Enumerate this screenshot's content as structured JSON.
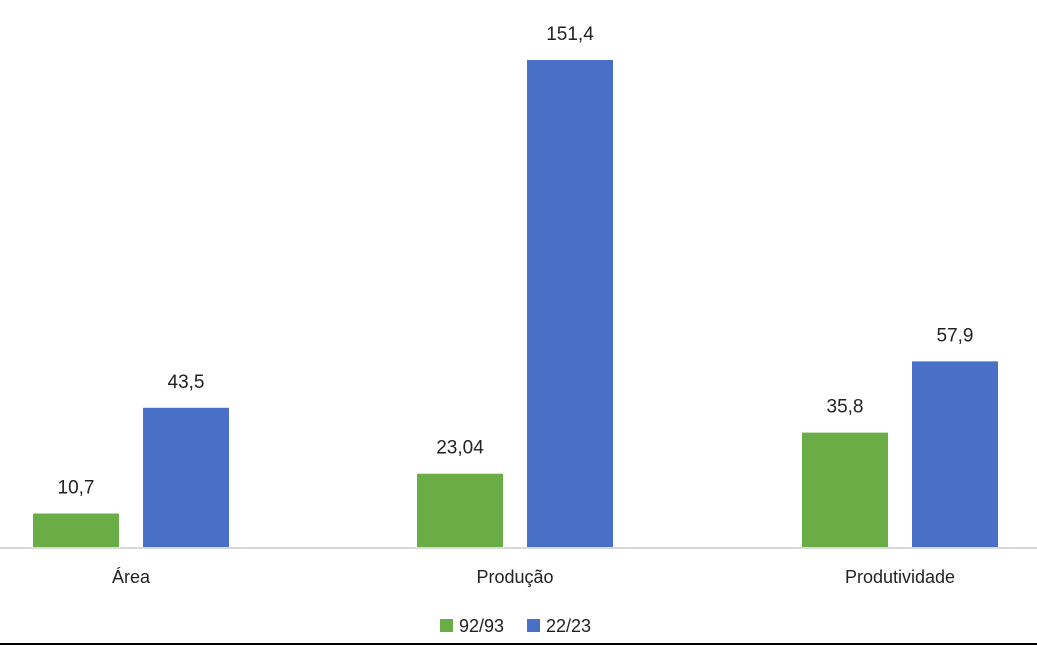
{
  "chart_data": {
    "type": "bar",
    "categories": [
      "Área",
      "Produção",
      "Produtividade"
    ],
    "series": [
      {
        "name": "92/93",
        "values": [
          10.7,
          23.04,
          35.8
        ],
        "labels": [
          "10,7",
          "23,04",
          "35,8"
        ],
        "color": "#6aad46"
      },
      {
        "name": "22/23",
        "values": [
          43.5,
          151.4,
          57.9
        ],
        "labels": [
          "43,5",
          "151,4",
          "57,9"
        ],
        "color": "#4a6fc6"
      }
    ],
    "title": "",
    "xlabel": "",
    "ylabel": "",
    "ylim": [
      0,
      151.4
    ],
    "grid": false,
    "legend": "bottom-center",
    "data_labels": true
  }
}
